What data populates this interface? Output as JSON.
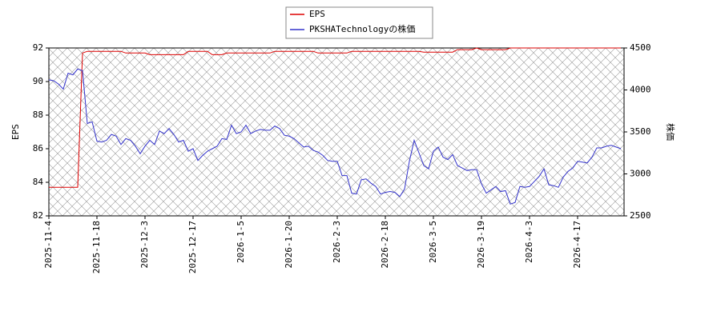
{
  "chart_data": {
    "type": "line",
    "categories": [
      "2025-11-4",
      null,
      null,
      null,
      null,
      null,
      null,
      null,
      null,
      null,
      "2025-11-18",
      null,
      null,
      null,
      null,
      null,
      null,
      null,
      null,
      null,
      "2025-12-3",
      null,
      null,
      null,
      null,
      null,
      null,
      null,
      null,
      null,
      "2025-12-17",
      null,
      null,
      null,
      null,
      null,
      null,
      null,
      null,
      null,
      "2026-1-5",
      null,
      null,
      null,
      null,
      null,
      null,
      null,
      null,
      null,
      "2026-1-20",
      null,
      null,
      null,
      null,
      null,
      null,
      null,
      null,
      null,
      "2026-2-3",
      null,
      null,
      null,
      null,
      null,
      null,
      null,
      null,
      null,
      "2026-2-18",
      null,
      null,
      null,
      null,
      null,
      null,
      null,
      null,
      null,
      "2026-3-5",
      null,
      null,
      null,
      null,
      null,
      null,
      null,
      null,
      null,
      "2026-3-19",
      null,
      null,
      null,
      null,
      null,
      null,
      null,
      null,
      null,
      "2026-4-3",
      null,
      null,
      null,
      null,
      null,
      null,
      null,
      null,
      null,
      "2026-4-17",
      null,
      null,
      null,
      null,
      null,
      null,
      null,
      null,
      null
    ],
    "series": [
      {
        "name": "EPS",
        "color": "#dd0000",
        "axis": "y",
        "values": [
          83.7,
          83.7,
          83.7,
          83.7,
          83.7,
          83.7,
          83.7,
          91.7,
          91.8,
          91.8,
          91.8,
          91.8,
          91.8,
          91.8,
          91.8,
          91.8,
          91.7,
          91.7,
          91.7,
          91.7,
          91.7,
          91.6,
          91.6,
          91.6,
          91.6,
          91.6,
          91.6,
          91.6,
          91.6,
          91.8,
          91.8,
          91.8,
          91.8,
          91.8,
          91.6,
          91.6,
          91.6,
          91.7,
          91.7,
          91.7,
          91.7,
          91.7,
          91.7,
          91.7,
          91.7,
          91.7,
          91.7,
          91.8,
          91.8,
          91.8,
          91.8,
          91.8,
          91.8,
          91.8,
          91.8,
          91.8,
          91.7,
          91.7,
          91.7,
          91.7,
          91.7,
          91.7,
          91.7,
          91.8,
          91.8,
          91.8,
          91.8,
          91.8,
          91.8,
          91.8,
          91.8,
          91.8,
          91.8,
          91.8,
          91.8,
          91.8,
          91.8,
          91.8,
          91.75,
          91.75,
          91.75,
          91.75,
          91.75,
          91.75,
          91.75,
          91.9,
          91.9,
          91.9,
          91.9,
          92,
          91.9,
          91.9,
          91.9,
          91.9,
          91.9,
          91.9,
          92,
          92,
          92,
          92,
          92,
          92,
          92,
          92,
          92,
          92,
          92,
          92,
          92,
          92,
          92,
          92,
          92,
          92,
          92,
          92,
          92,
          92,
          92,
          92
        ]
      },
      {
        "name": "PKSHATechnologyの株価",
        "color": "#3333cc",
        "axis": "y2",
        "values": [
          4120,
          4110,
          4070,
          4010,
          4200,
          4180,
          4250,
          4230,
          3600,
          3620,
          3390,
          3380,
          3400,
          3470,
          3450,
          3350,
          3420,
          3400,
          3330,
          3240,
          3330,
          3400,
          3350,
          3510,
          3480,
          3540,
          3470,
          3380,
          3400,
          3270,
          3300,
          3160,
          3220,
          3270,
          3300,
          3330,
          3420,
          3410,
          3580,
          3480,
          3500,
          3580,
          3480,
          3510,
          3530,
          3520,
          3520,
          3570,
          3540,
          3460,
          3450,
          3420,
          3370,
          3320,
          3330,
          3280,
          3260,
          3220,
          3160,
          3150,
          3150,
          2980,
          2980,
          2770,
          2760,
          2930,
          2940,
          2890,
          2850,
          2760,
          2780,
          2790,
          2780,
          2730,
          2820,
          3150,
          3400,
          3250,
          3100,
          3060,
          3270,
          3320,
          3200,
          3170,
          3230,
          3100,
          3070,
          3040,
          3050,
          3050,
          2880,
          2770,
          2810,
          2850,
          2790,
          2800,
          2640,
          2660,
          2850,
          2840,
          2850,
          2910,
          2970,
          3060,
          2870,
          2860,
          2840,
          2960,
          3030,
          3070,
          3150,
          3140,
          3130,
          3200,
          3310,
          3310,
          3330,
          3340,
          3320,
          3300
        ]
      }
    ],
    "ylabel": "EPS",
    "y2label": "株価",
    "ylim": [
      82,
      92
    ],
    "yticks": [
      82,
      84,
      86,
      88,
      90,
      92
    ],
    "y2lim": [
      2500,
      4500
    ],
    "y2ticks": [
      2500,
      3000,
      3500,
      4000,
      4500
    ],
    "legend": "top"
  }
}
